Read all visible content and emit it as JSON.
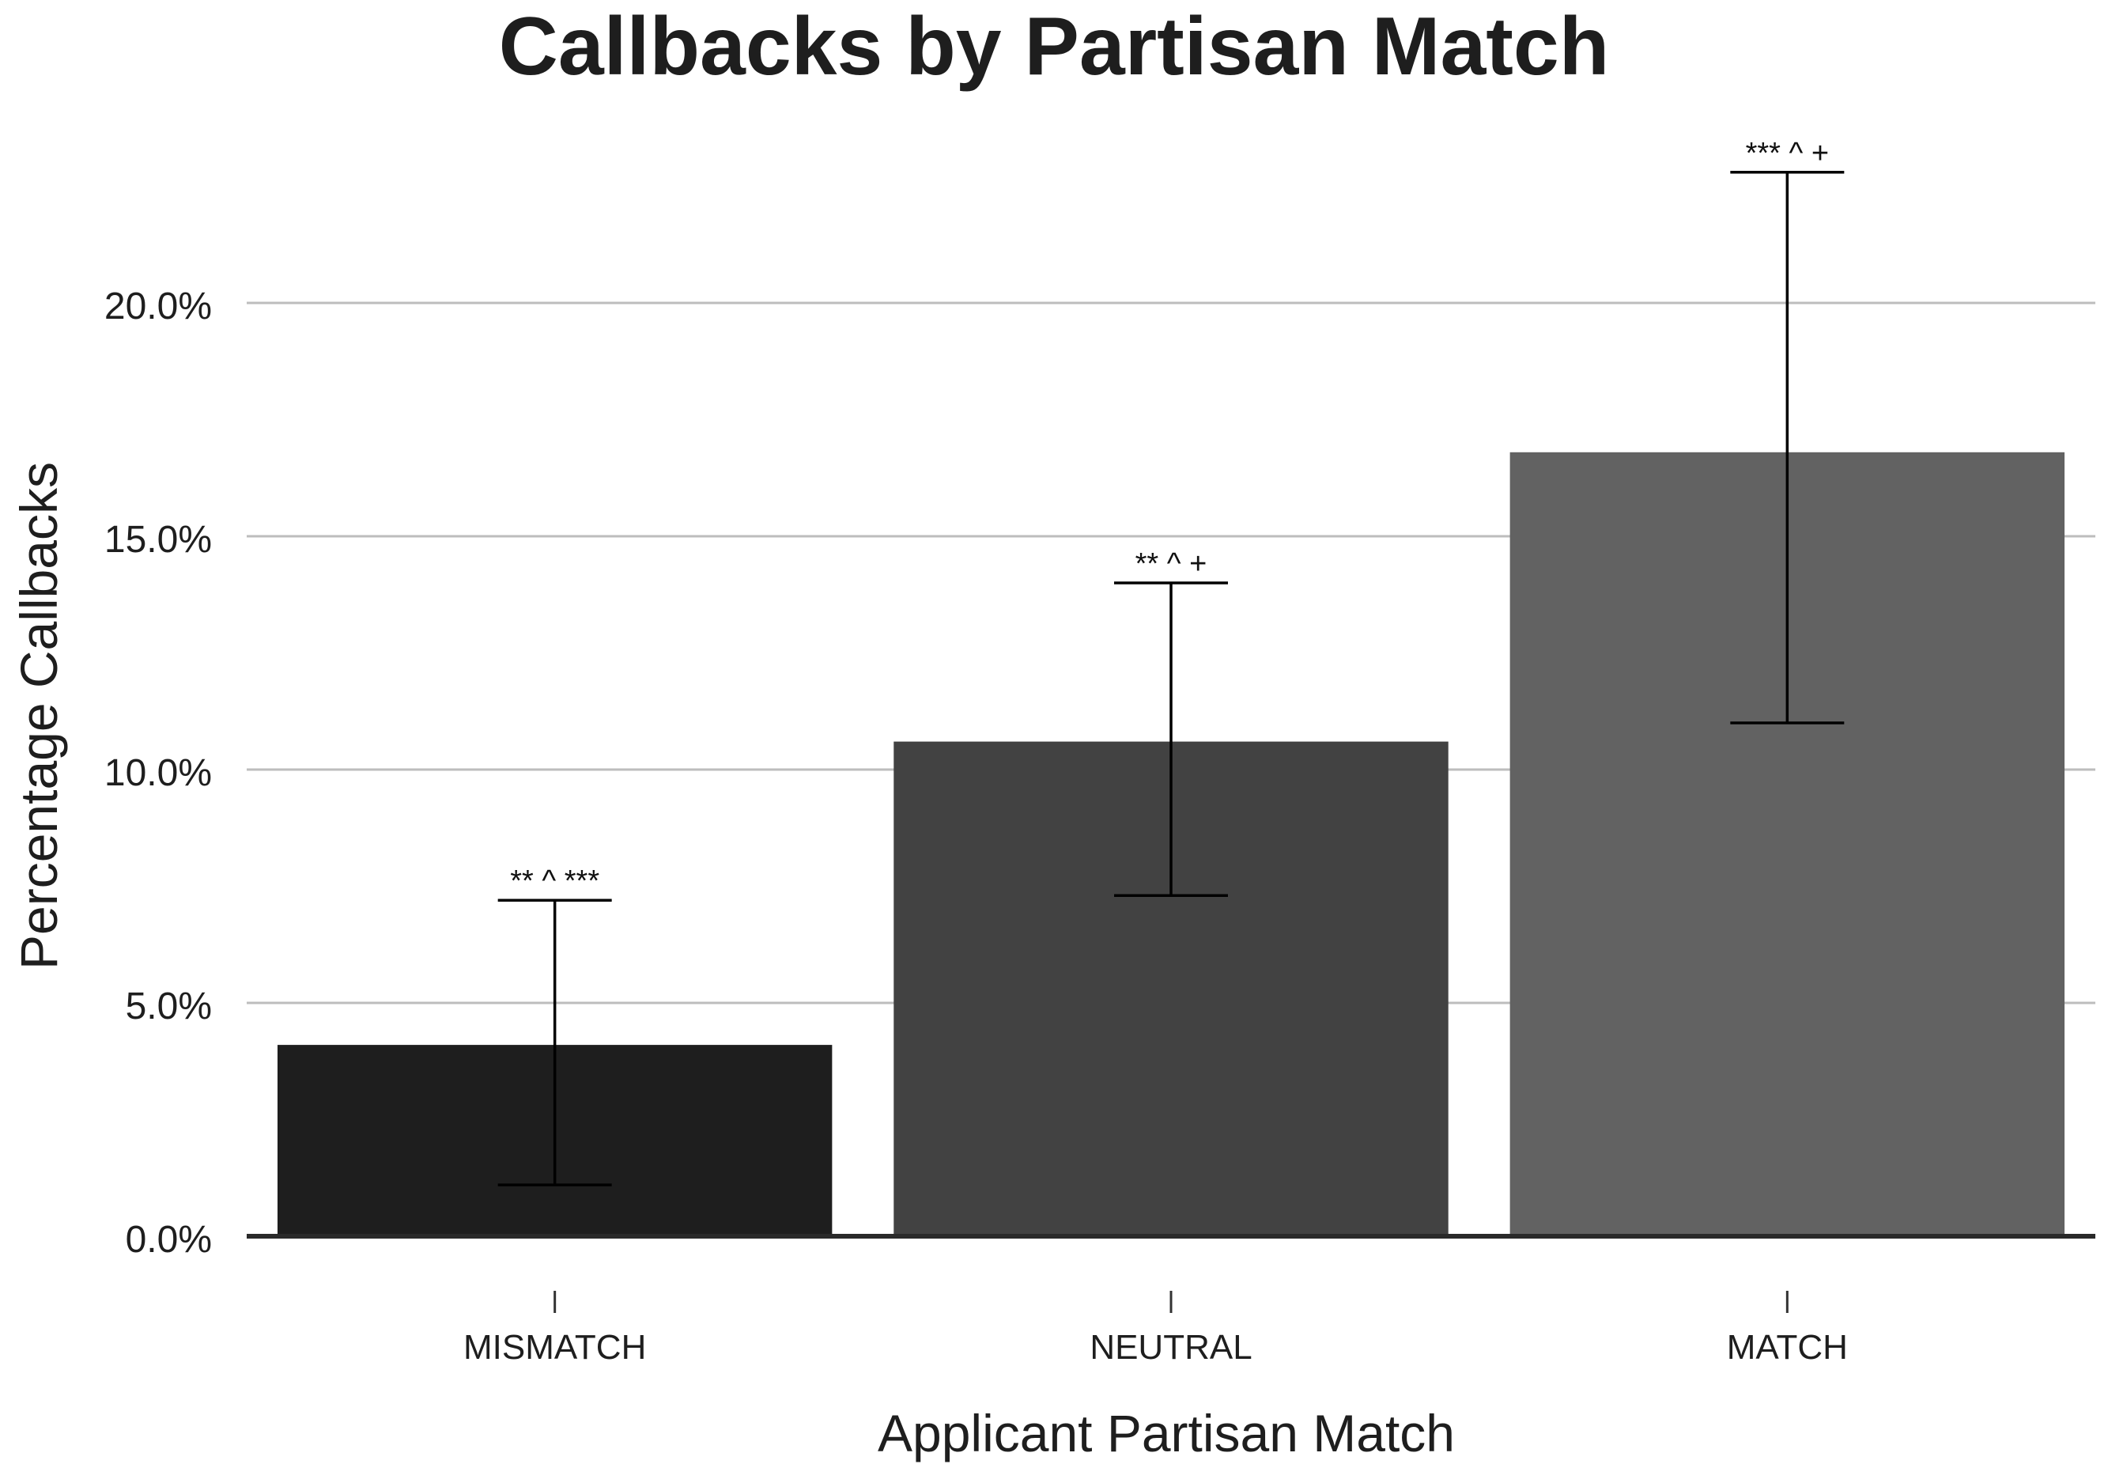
{
  "chart_data": {
    "type": "bar",
    "title": "Callbacks by Partisan Match",
    "xlabel": "Applicant Partisan Match",
    "ylabel": "Percentage Callbacks",
    "categories": [
      "MISMATCH",
      "NEUTRAL",
      "MATCH"
    ],
    "values": [
      4.1,
      10.6,
      16.8
    ],
    "error_low": [
      1.1,
      7.3,
      11.0
    ],
    "error_high": [
      7.2,
      14.0,
      22.8
    ],
    "annotations": [
      "** ^ ***",
      "** ^ +",
      "*** ^ +"
    ],
    "bar_colors": [
      "#1e1e1e",
      "#424242",
      "#626262"
    ],
    "ylim": [
      0,
      23.5
    ],
    "yticks": [
      0,
      5,
      10,
      15,
      20
    ],
    "ytick_labels": [
      "0.0%",
      "5.0%",
      "10.0%",
      "15.0%",
      "20.0%"
    ],
    "grid": true,
    "legend": "none"
  }
}
